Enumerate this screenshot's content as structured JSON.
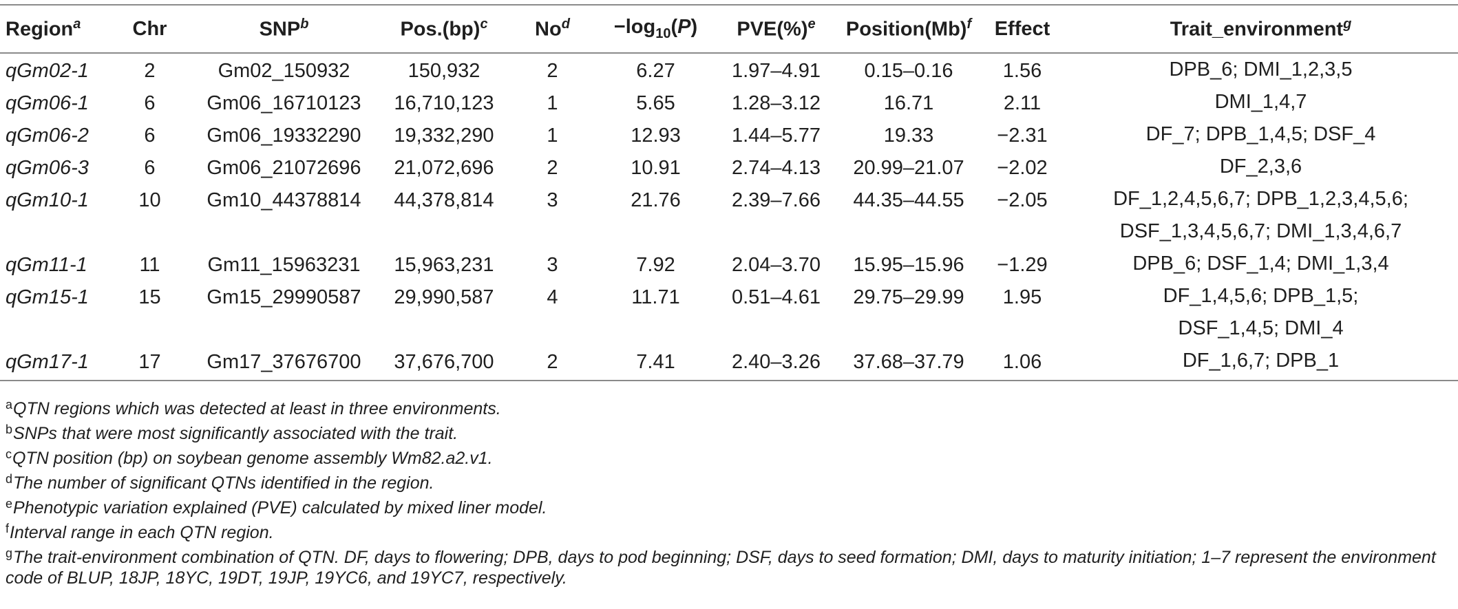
{
  "table": {
    "headers": {
      "region": "Region",
      "region_sup": "a",
      "chr": "Chr",
      "snp": "SNP",
      "snp_sup": "b",
      "pos": "Pos.(bp)",
      "pos_sup": "c",
      "no": "No",
      "no_sup": "d",
      "logp_pre": "−log",
      "logp_sub": "10",
      "logp_open": "(",
      "logp_p": "P",
      "logp_close": ")",
      "pve": "PVE(%)",
      "pve_sup": "e",
      "position": "Position(Mb)",
      "position_sup": "f",
      "effect": "Effect",
      "trait": "Trait_environment",
      "trait_sup": "g"
    },
    "rows": [
      {
        "region": "qGm02-1",
        "chr": "2",
        "snp": "Gm02_150932",
        "pos": "150,932",
        "no": "2",
        "logp": "6.27",
        "pve": "1.97–4.91",
        "position": "0.15–0.16",
        "effect": "1.56",
        "trait": "DPB_6; DMI_1,2,3,5"
      },
      {
        "region": "qGm06-1",
        "chr": "6",
        "snp": "Gm06_16710123",
        "pos": "16,710,123",
        "no": "1",
        "logp": "5.65",
        "pve": "1.28–3.12",
        "position": "16.71",
        "effect": "2.11",
        "trait": "DMI_1,4,7"
      },
      {
        "region": "qGm06-2",
        "chr": "6",
        "snp": "Gm06_19332290",
        "pos": "19,332,290",
        "no": "1",
        "logp": "12.93",
        "pve": "1.44–5.77",
        "position": "19.33",
        "effect": "−2.31",
        "trait": "DF_7; DPB_1,4,5; DSF_4"
      },
      {
        "region": "qGm06-3",
        "chr": "6",
        "snp": "Gm06_21072696",
        "pos": "21,072,696",
        "no": "2",
        "logp": "10.91",
        "pve": "2.74–4.13",
        "position": "20.99–21.07",
        "effect": "−2.02",
        "trait": "DF_2,3,6"
      },
      {
        "region": "qGm10-1",
        "chr": "10",
        "snp": "Gm10_44378814",
        "pos": "44,378,814",
        "no": "3",
        "logp": "21.76",
        "pve": "2.39–7.66",
        "position": "44.35–44.55",
        "effect": "−2.05",
        "trait_line1": "DF_1,2,4,5,6,7; DPB_1,2,3,4,5,6;",
        "trait_line2": "DSF_1,3,4,5,6,7; DMI_1,3,4,6,7"
      },
      {
        "region": "qGm11-1",
        "chr": "11",
        "snp": "Gm11_15963231",
        "pos": "15,963,231",
        "no": "3",
        "logp": "7.92",
        "pve": "2.04–3.70",
        "position": "15.95–15.96",
        "effect": "−1.29",
        "trait": "DPB_6; DSF_1,4; DMI_1,3,4"
      },
      {
        "region": "qGm15-1",
        "chr": "15",
        "snp": "Gm15_29990587",
        "pos": "29,990,587",
        "no": "4",
        "logp": "11.71",
        "pve": "0.51–4.61",
        "position": "29.75–29.99",
        "effect": "1.95",
        "trait_line1": "DF_1,4,5,6; DPB_1,5;",
        "trait_line2": "DSF_1,4,5; DMI_4"
      },
      {
        "region": "qGm17-1",
        "chr": "17",
        "snp": "Gm17_37676700",
        "pos": "37,676,700",
        "no": "2",
        "logp": "7.41",
        "pve": "2.40–3.26",
        "position": "37.68–37.79",
        "effect": "1.06",
        "trait": "DF_1,6,7; DPB_1"
      }
    ]
  },
  "footnotes": [
    {
      "mark": "a",
      "text": "QTN regions which was detected at least in three environments."
    },
    {
      "mark": "b",
      "text": "SNPs that were most significantly associated with the trait."
    },
    {
      "mark": "c",
      "text": "QTN position (bp) on soybean genome assembly Wm82.a2.v1."
    },
    {
      "mark": "d",
      "text": "The number of significant QTNs identified in the region."
    },
    {
      "mark": "e",
      "text": "Phenotypic variation explained (PVE) calculated by mixed liner model."
    },
    {
      "mark": "f",
      "text": "Interval range in each QTN region."
    },
    {
      "mark": "g",
      "text": "The trait-environment combination of QTN. DF, days to flowering; DPB, days to pod beginning; DSF, days to seed formation; DMI, days to maturity initiation; 1–7 represent the environment code of BLUP, 18JP, 18YC, 19DT, 19JP, 19YC6, and 19YC7, respectively."
    }
  ],
  "colors": {
    "text": "#1f1f1f",
    "rule": "#8a8a8a",
    "background": "#ffffff"
  }
}
